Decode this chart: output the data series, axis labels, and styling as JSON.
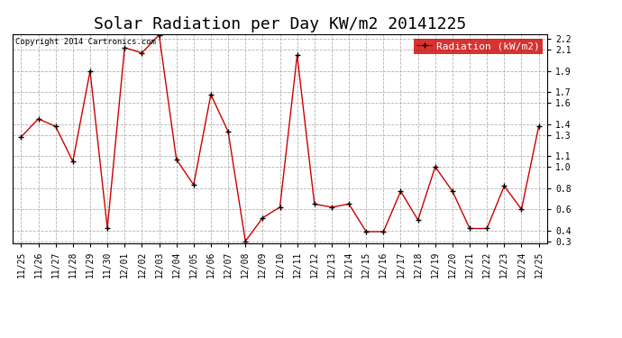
{
  "title": "Solar Radiation per Day KW/m2 20141225",
  "copyright_text": "Copyright 2014 Cartronics.com",
  "legend_label": "Radiation (kW/m2)",
  "x_labels_display": [
    "11/25",
    "11/26",
    "11/27",
    "11/28",
    "11/29",
    "11/30",
    "12/01",
    "12/02",
    "12/03",
    "12/04",
    "12/05",
    "12/06",
    "12/07",
    "12/08",
    "12/09",
    "12/10",
    "12/11",
    "12/12",
    "12/13",
    "12/14",
    "12/15",
    "12/16",
    "12/17",
    "12/18",
    "12/19",
    "12/20",
    "12/21",
    "12/22",
    "12/23",
    "12/24",
    "12/25"
  ],
  "y_values": [
    1.28,
    1.45,
    1.38,
    1.05,
    1.9,
    0.42,
    2.12,
    2.07,
    2.24,
    1.07,
    0.83,
    1.68,
    1.33,
    0.3,
    0.52,
    0.62,
    2.05,
    0.65,
    0.62,
    0.65,
    0.39,
    0.39,
    0.77,
    0.5,
    1.0,
    0.77,
    0.42,
    0.42,
    0.82,
    0.6,
    1.38
  ],
  "line_color": "#cc0000",
  "marker_color": "#000000",
  "bg_color": "#ffffff",
  "grid_color": "#aaaaaa",
  "ylim": [
    0.28,
    2.25
  ],
  "yticks": [
    0.3,
    0.4,
    0.6,
    0.8,
    1.0,
    1.1,
    1.3,
    1.4,
    1.6,
    1.7,
    1.9,
    2.1,
    2.2
  ],
  "title_fontsize": 13,
  "tick_fontsize": 7,
  "legend_fontsize": 8,
  "copyright_fontsize": 6.5
}
